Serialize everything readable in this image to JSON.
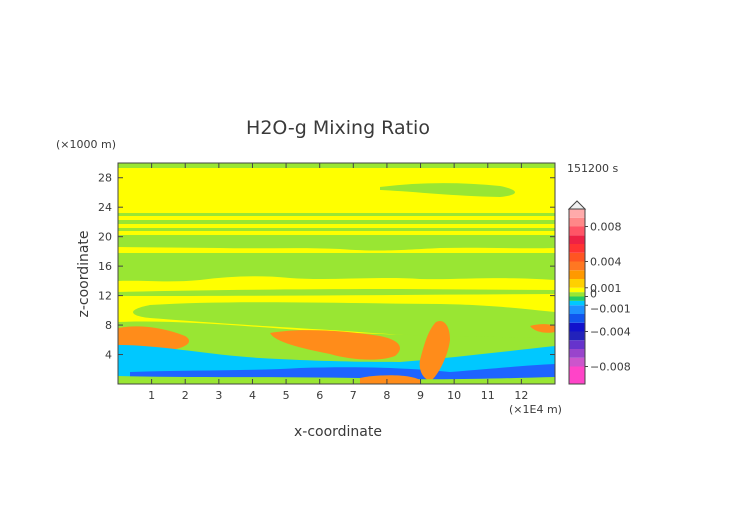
{
  "chart_data": {
    "type": "heatmap",
    "title": "H2O-g Mixing Ratio",
    "time_label": "151200 s",
    "x_axis": {
      "label": "x-coordinate",
      "unit_label": "(×1E4 m)",
      "ticks": [
        "1",
        "2",
        "3",
        "4",
        "5",
        "6",
        "7",
        "8",
        "9",
        "10",
        "11",
        "12"
      ],
      "range": [
        0,
        13
      ]
    },
    "y_axis": {
      "label": "z-coordinate",
      "unit_label": "(×1000 m)",
      "ticks": [
        "4",
        "8",
        "12",
        "16",
        "20",
        "24",
        "28"
      ],
      "range": [
        0,
        30
      ]
    },
    "colorbar": {
      "labels": [
        "0.008",
        "0.004",
        "0.001",
        "0",
        "−0.001",
        "−0.004",
        "−0.008"
      ],
      "values": [
        0.008,
        0.004,
        0.001,
        0,
        -0.001,
        -0.004,
        -0.008
      ],
      "range": [
        -0.01,
        0.01
      ]
    },
    "colors": {
      "background_field": "#ffff00",
      "slightly_negative": "#99e633",
      "positive_orange": "#ff8c1a",
      "negative_cyan": "#00c8ff",
      "negative_blue": "#1e64ff"
    }
  }
}
